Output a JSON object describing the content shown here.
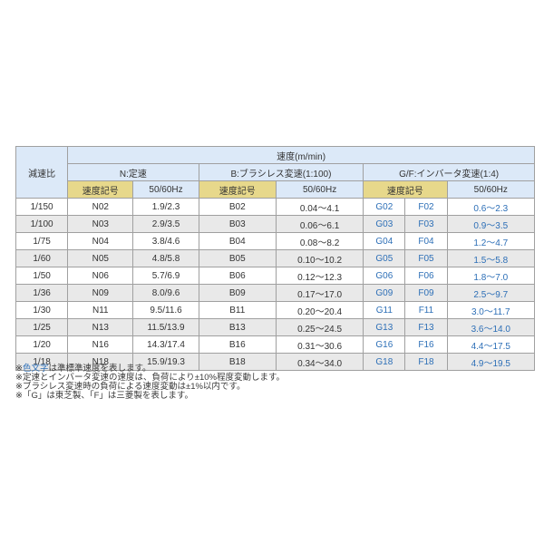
{
  "table": {
    "title": "速度(m/min)",
    "row_header": "減速比",
    "groups": {
      "n": "N:定速",
      "b": "B:ブラシレス変速(1:100)",
      "gf": "G/F:インバータ変速(1:4)"
    },
    "sub_headers": {
      "symbol": "速度記号",
      "hz": "50/60Hz"
    },
    "rows": [
      {
        "ratio": "1/150",
        "n_sym": "N02",
        "n_hz": "1.9/2.3",
        "b_sym": "B02",
        "b_hz": "0.04～4.1",
        "g_sym": "G02",
        "f_sym": "F02",
        "gf_hz": "0.6～2.3"
      },
      {
        "ratio": "1/100",
        "n_sym": "N03",
        "n_hz": "2.9/3.5",
        "b_sym": "B03",
        "b_hz": "0.06～6.1",
        "g_sym": "G03",
        "f_sym": "F03",
        "gf_hz": "0.9～3.5"
      },
      {
        "ratio": "1/75",
        "n_sym": "N04",
        "n_hz": "3.8/4.6",
        "b_sym": "B04",
        "b_hz": "0.08～8.2",
        "g_sym": "G04",
        "f_sym": "F04",
        "gf_hz": "1.2～4.7"
      },
      {
        "ratio": "1/60",
        "n_sym": "N05",
        "n_hz": "4.8/5.8",
        "b_sym": "B05",
        "b_hz": "0.10～10.2",
        "g_sym": "G05",
        "f_sym": "F05",
        "gf_hz": "1.5～5.8"
      },
      {
        "ratio": "1/50",
        "n_sym": "N06",
        "n_hz": "5.7/6.9",
        "b_sym": "B06",
        "b_hz": "0.12～12.3",
        "g_sym": "G06",
        "f_sym": "F06",
        "gf_hz": "1.8～7.0"
      },
      {
        "ratio": "1/36",
        "n_sym": "N09",
        "n_hz": "8.0/9.6",
        "b_sym": "B09",
        "b_hz": "0.17～17.0",
        "g_sym": "G09",
        "f_sym": "F09",
        "gf_hz": "2.5～9.7"
      },
      {
        "ratio": "1/30",
        "n_sym": "N11",
        "n_hz": "9.5/11.6",
        "b_sym": "B11",
        "b_hz": "0.20～20.4",
        "g_sym": "G11",
        "f_sym": "F11",
        "gf_hz": "3.0～11.7"
      },
      {
        "ratio": "1/25",
        "n_sym": "N13",
        "n_hz": "11.5/13.9",
        "b_sym": "B13",
        "b_hz": "0.25～24.5",
        "g_sym": "G13",
        "f_sym": "F13",
        "gf_hz": "3.6～14.0"
      },
      {
        "ratio": "1/20",
        "n_sym": "N16",
        "n_hz": "14.3/17.4",
        "b_sym": "B16",
        "b_hz": "0.31～30.6",
        "g_sym": "G16",
        "f_sym": "F16",
        "gf_hz": "4.4～17.5"
      },
      {
        "ratio": "1/18",
        "n_sym": "N18",
        "n_hz": "15.9/19.3",
        "b_sym": "B18",
        "b_hz": "0.34～34.0",
        "g_sym": "G18",
        "f_sym": "F18",
        "gf_hz": "4.9～19.5"
      }
    ]
  },
  "footnotes": {
    "note1_prefix": "※",
    "note1_colored": "色文字",
    "note1_rest": "は準標準速度を表します。",
    "note2": "※定速とインバータ変速の速度は、負荷により±10%程度変動します。",
    "note3": "※ブラシレス変速時の負荷による速度変動は±1%以内です。",
    "note4": "※「G」は東芝製、「F」は三菱製を表します。"
  },
  "colors": {
    "header_blue": "#dce9f8",
    "header_yellow": "#e7d88b",
    "alt_row_gray": "#e9e9e9",
    "accent_blue_text": "#2d6fb7",
    "border_gray": "#a0a0a0"
  }
}
